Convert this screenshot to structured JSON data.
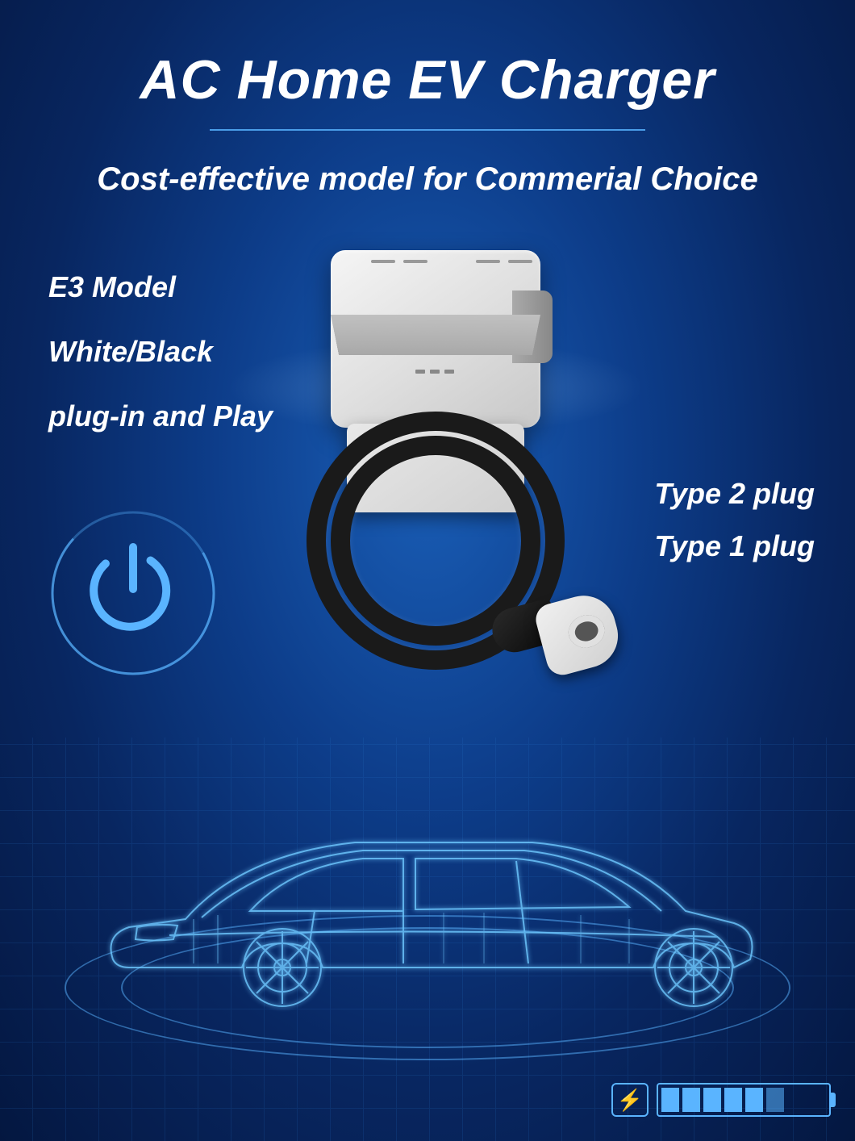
{
  "title": "AC Home EV Charger",
  "subtitle": "Cost-effective model for Commerial Choice",
  "features": {
    "line1": "E3 Model",
    "line2": "White/Black",
    "line3": "plug-in and Play"
  },
  "plugs": {
    "line1": "Type 2 plug",
    "line2": "Type 1  plug"
  },
  "colors": {
    "text": "#ffffff",
    "accent": "#5ab4ff",
    "underline": "#4a9de8",
    "bg_center": "#1a5fb8",
    "bg_outer": "#041740",
    "charger_light": "#f5f5f5",
    "charger_dark": "#c8c8c8",
    "cable": "#1a1a1a"
  },
  "battery": {
    "total_cells": 8,
    "filled_cells": 6,
    "fill_color": "#5ab4ff",
    "last_fill_opacity": 0.55,
    "empty_color": "transparent"
  },
  "power_icon": {
    "outer_stroke": "#5ab4ff",
    "outer_opacity": 0.35,
    "inner_stroke": "#5ab4ff"
  },
  "car": {
    "stroke": "#6ec8ff",
    "glow": "#8ed8ff"
  }
}
